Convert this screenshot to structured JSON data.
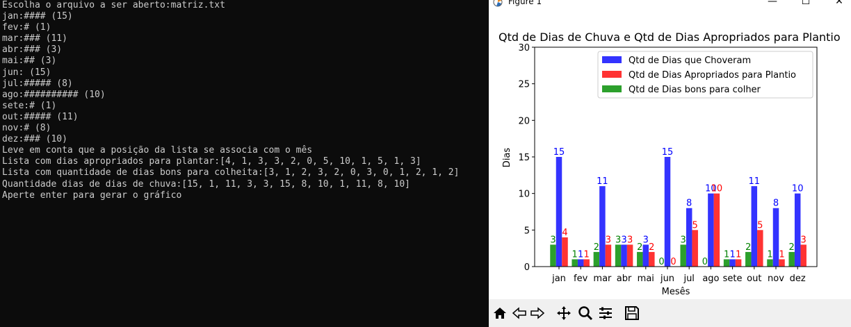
{
  "terminal": {
    "lines": [
      "Escolha o arquivo a ser aberto:matriz.txt",
      "jan:#### (15)",
      "fev:# (1)",
      "mar:### (11)",
      "abr:### (3)",
      "mai:## (3)",
      "jun: (15)",
      "jul:##### (8)",
      "ago:########## (10)",
      "sete:# (1)",
      "out:##### (11)",
      "nov:# (8)",
      "dez:### (10)",
      "Leve em conta que a posição da lista se associa com o mês",
      "Lista com dias apropriados para plantar:[4, 1, 3, 3, 2, 0, 5, 10, 1, 5, 1, 3]",
      "Lista com quantidade de dias bons para colheita:[3, 1, 2, 3, 2, 0, 3, 0, 1, 2, 1, 2]",
      "Quantidade dias de dias de chuva:[15, 1, 11, 3, 3, 15, 8, 10, 1, 11, 8, 10]",
      "Aperte enter para gerar o gráfico"
    ]
  },
  "window": {
    "title": "Figure 1",
    "minimize": "—",
    "maximize": "☐",
    "close": "✕"
  },
  "toolbar": {
    "icons": [
      "home-icon",
      "back-arrow-icon",
      "forward-arrow-icon",
      "pan-move-icon",
      "zoom-magnifier-icon",
      "configure-subplots-icon",
      "save-floppy-icon"
    ]
  },
  "chart_data": {
    "type": "bar",
    "title": "Qtd de Dias de Chuva e Qtd de Dias Apropriados para Plantio",
    "xlabel": "Mesês",
    "ylabel": "Dias",
    "ylim": [
      0,
      30
    ],
    "yticks": [
      0,
      5,
      10,
      15,
      20,
      25,
      30
    ],
    "categories": [
      "jan",
      "fev",
      "mar",
      "abr",
      "mai",
      "jun",
      "jul",
      "ago",
      "sete",
      "out",
      "nov",
      "dez"
    ],
    "legend_position": "top-right",
    "series": [
      {
        "name": "Qtd de Dias bons para colher",
        "color": "#2ca02c",
        "label_color": "#008000",
        "values": [
          3,
          1,
          2,
          3,
          2,
          0,
          3,
          0,
          1,
          2,
          1,
          2
        ]
      },
      {
        "name": "Qtd de Dias que Choveram",
        "color": "#3333ff",
        "label_color": "#0000ff",
        "values": [
          15,
          1,
          11,
          3,
          3,
          15,
          8,
          10,
          1,
          11,
          8,
          10
        ]
      },
      {
        "name": "Qtd de Dias Apropriados para Plantio",
        "color": "#ff3333",
        "label_color": "#ff0000",
        "values": [
          4,
          1,
          3,
          3,
          2,
          0,
          5,
          10,
          1,
          5,
          1,
          3
        ]
      }
    ],
    "legend_order": [
      1,
      2,
      0
    ]
  }
}
